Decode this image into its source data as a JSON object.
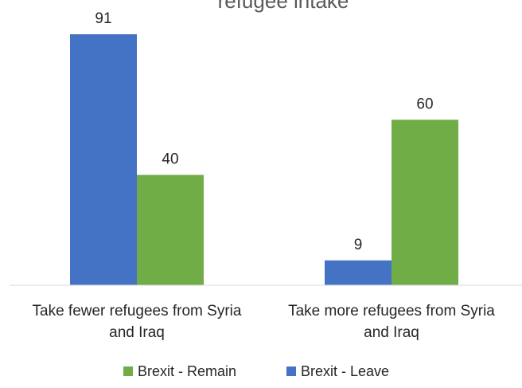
{
  "chart_data": {
    "type": "bar",
    "title": "refugee intake",
    "categories": [
      "Take fewer refugees from Syria and Iraq",
      "Take more refugees from Syria and Iraq"
    ],
    "category_lines": [
      [
        "Take fewer refugees from Syria",
        "and Iraq"
      ],
      [
        "Take more refugees from Syria",
        "and Iraq"
      ]
    ],
    "series": [
      {
        "name": "Brexit - Leave",
        "values": [
          91,
          9
        ],
        "color": "#4472C4"
      },
      {
        "name": "Brexit - Remain",
        "values": [
          40,
          60
        ],
        "color": "#70AD47"
      }
    ],
    "legend_order": [
      "Brexit - Remain",
      "Brexit - Leave"
    ],
    "ylim": [
      0,
      91
    ],
    "grid": false,
    "legend_position": "bottom",
    "data_labels": true,
    "xlabel": "",
    "ylabel": ""
  }
}
